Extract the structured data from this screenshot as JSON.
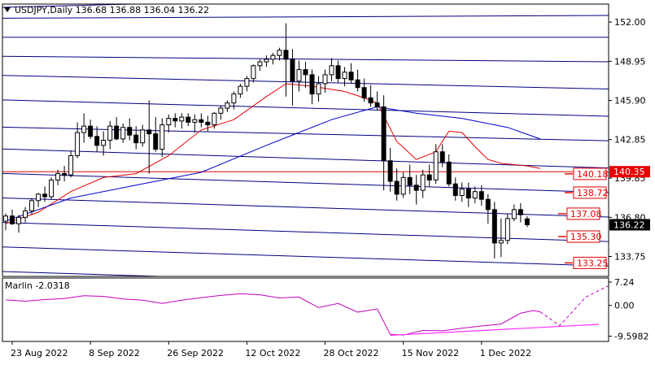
{
  "header": {
    "symbol_line": "USDJPY,Daily  136.68 136.88 136.04 136.22",
    "collapse_icon": "triangle-down-icon"
  },
  "chart_data": [
    {
      "type": "candlestick",
      "title": "USDJPY,Daily",
      "ohlc_header": {
        "open": 136.68,
        "high": 136.88,
        "low": 136.04,
        "close": 136.22
      },
      "y_ticks": [
        "152.00",
        "148.95",
        "145.90",
        "142.85",
        "139.85",
        "136.80",
        "133.75"
      ],
      "ylim": [
        132.2,
        153.4
      ],
      "x_ticks": [
        {
          "label": "23 Aug 2022",
          "index": 1
        },
        {
          "label": "8 Sep 2022",
          "index": 13
        },
        {
          "label": "26 Sep 2022",
          "index": 25
        },
        {
          "label": "12 Oct 2022",
          "index": 37
        },
        {
          "label": "28 Oct 2022",
          "index": 49
        },
        {
          "label": "15 Nov 2022",
          "index": 61
        },
        {
          "label": "1 Dec 2022",
          "index": 73
        }
      ],
      "n_slots": 93,
      "candles": [
        [
          136.5,
          137.1,
          135.8,
          136.9
        ],
        [
          136.9,
          137.4,
          136.2,
          136.3
        ],
        [
          136.3,
          137.0,
          135.6,
          136.8
        ],
        [
          136.8,
          137.6,
          136.4,
          137.3
        ],
        [
          137.3,
          138.3,
          137.0,
          138.1
        ],
        [
          138.1,
          138.7,
          137.6,
          138.6
        ],
        [
          138.6,
          139.2,
          138.0,
          138.4
        ],
        [
          138.4,
          139.9,
          138.2,
          139.7
        ],
        [
          139.7,
          140.5,
          139.3,
          140.2
        ],
        [
          140.2,
          140.8,
          139.6,
          140.1
        ],
        [
          140.1,
          142.0,
          139.9,
          141.6
        ],
        [
          141.6,
          144.2,
          141.4,
          143.4
        ],
        [
          143.4,
          144.9,
          142.6,
          143.9
        ],
        [
          143.9,
          144.4,
          142.9,
          143.1
        ],
        [
          143.1,
          143.9,
          141.9,
          142.4
        ],
        [
          142.4,
          143.5,
          141.6,
          142.8
        ],
        [
          142.8,
          144.3,
          142.1,
          143.9
        ],
        [
          143.9,
          144.6,
          142.8,
          142.9
        ],
        [
          142.9,
          144.1,
          142.6,
          143.8
        ],
        [
          143.8,
          144.5,
          142.8,
          143.2
        ],
        [
          143.2,
          143.9,
          142.1,
          142.6
        ],
        [
          142.6,
          144.0,
          142.3,
          143.6
        ],
        [
          143.6,
          145.9,
          140.2,
          143.3
        ],
        [
          143.3,
          144.6,
          141.9,
          142.1
        ],
        [
          142.1,
          144.5,
          141.5,
          144.0
        ],
        [
          144.0,
          144.8,
          143.4,
          144.5
        ],
        [
          144.5,
          144.9,
          143.8,
          144.3
        ],
        [
          144.3,
          144.9,
          143.7,
          144.6
        ],
        [
          144.6,
          144.9,
          143.9,
          144.2
        ],
        [
          144.2,
          144.8,
          143.4,
          144.4
        ],
        [
          144.4,
          144.9,
          143.8,
          144.2
        ],
        [
          144.2,
          144.7,
          143.5,
          144.0
        ],
        [
          144.0,
          145.0,
          143.7,
          144.9
        ],
        [
          144.9,
          145.5,
          144.4,
          145.3
        ],
        [
          145.3,
          145.9,
          145.0,
          145.7
        ],
        [
          145.7,
          146.6,
          145.2,
          146.4
        ],
        [
          146.4,
          147.2,
          146.1,
          147.0
        ],
        [
          147.0,
          147.8,
          146.6,
          147.6
        ],
        [
          147.6,
          148.7,
          147.3,
          148.6
        ],
        [
          148.6,
          149.1,
          148.2,
          148.9
        ],
        [
          148.9,
          149.4,
          148.5,
          149.1
        ],
        [
          149.1,
          149.6,
          148.7,
          149.4
        ],
        [
          149.4,
          150.0,
          149.0,
          149.8
        ],
        [
          149.8,
          151.9,
          146.2,
          149.1
        ],
        [
          149.1,
          149.9,
          145.5,
          147.4
        ],
        [
          147.4,
          149.0,
          146.6,
          148.3
        ],
        [
          148.3,
          148.9,
          146.9,
          147.9
        ],
        [
          147.9,
          148.3,
          145.6,
          146.4
        ],
        [
          146.4,
          147.8,
          145.8,
          147.2
        ],
        [
          147.2,
          148.3,
          146.5,
          147.9
        ],
        [
          147.9,
          149.2,
          147.4,
          148.6
        ],
        [
          148.6,
          149.0,
          147.3,
          147.6
        ],
        [
          147.6,
          148.5,
          147.0,
          148.1
        ],
        [
          148.1,
          148.8,
          147.2,
          147.5
        ],
        [
          147.5,
          148.3,
          146.6,
          146.9
        ],
        [
          146.9,
          147.6,
          145.8,
          146.1
        ],
        [
          146.1,
          147.1,
          145.4,
          145.7
        ],
        [
          145.7,
          146.6,
          145.1,
          145.4
        ],
        [
          145.4,
          146.3,
          138.9,
          141.2
        ],
        [
          141.2,
          142.2,
          138.8,
          139.6
        ],
        [
          139.6,
          140.6,
          138.1,
          138.6
        ],
        [
          138.6,
          140.3,
          138.3,
          139.9
        ],
        [
          139.9,
          140.9,
          138.6,
          139.3
        ],
        [
          139.3,
          140.1,
          137.8,
          138.9
        ],
        [
          138.9,
          140.5,
          138.3,
          140.1
        ],
        [
          140.1,
          140.9,
          139.2,
          139.7
        ],
        [
          139.7,
          142.5,
          139.4,
          141.9
        ],
        [
          141.9,
          142.5,
          140.7,
          141.1
        ],
        [
          141.1,
          141.7,
          139.2,
          139.4
        ],
        [
          139.4,
          139.9,
          138.1,
          138.5
        ],
        [
          138.5,
          139.5,
          138.0,
          139.0
        ],
        [
          139.0,
          139.5,
          137.6,
          138.3
        ],
        [
          138.3,
          139.2,
          137.9,
          138.8
        ],
        [
          138.8,
          139.3,
          137.7,
          138.2
        ],
        [
          138.2,
          138.6,
          136.3,
          137.4
        ],
        [
          137.4,
          138.0,
          133.6,
          134.8
        ],
        [
          134.8,
          136.7,
          133.7,
          135.0
        ],
        [
          135.0,
          137.1,
          134.7,
          136.7
        ],
        [
          136.7,
          137.8,
          136.5,
          137.4
        ],
        [
          137.4,
          137.9,
          136.4,
          137.0
        ],
        [
          136.68,
          136.88,
          136.04,
          136.22
        ]
      ],
      "moving_averages": [
        {
          "color": "#e60000",
          "values": [
            [
              0,
              136.3
            ],
            [
              5,
              137.2
            ],
            [
              10,
              138.8
            ],
            [
              15,
              139.9
            ],
            [
              20,
              140.2
            ],
            [
              25,
              141.6
            ],
            [
              30,
              143.6
            ],
            [
              35,
              144.4
            ],
            [
              40,
              146.2
            ],
            [
              43,
              147.2
            ],
            [
              47,
              147.0
            ],
            [
              52,
              146.6
            ],
            [
              55,
              146.1
            ],
            [
              57,
              145.7
            ],
            [
              60,
              142.7
            ],
            [
              63,
              141.3
            ],
            [
              66,
              141.9
            ],
            [
              68,
              143.5
            ],
            [
              70,
              143.4
            ],
            [
              72,
              142.3
            ],
            [
              74,
              141.3
            ],
            [
              76,
              141.0
            ],
            [
              78,
              140.9
            ],
            [
              80,
              140.8
            ],
            [
              82,
              140.6
            ]
          ]
        },
        {
          "color": "#0000cc",
          "values": [
            [
              0,
              136.5
            ],
            [
              10,
              138.3
            ],
            [
              20,
              139.3
            ],
            [
              30,
              140.3
            ],
            [
              40,
              142.4
            ],
            [
              45,
              143.4
            ],
            [
              50,
              144.4
            ],
            [
              57,
              145.4
            ],
            [
              63,
              144.9
            ],
            [
              70,
              144.5
            ],
            [
              77,
              143.8
            ],
            [
              82,
              142.9
            ]
          ]
        }
      ],
      "horizontal_lines": [
        {
          "value": 140.35,
          "color": "#e60000",
          "label": "140.35"
        }
      ],
      "price_markers": [
        {
          "value": 140.18,
          "index": 87,
          "label": "140.18"
        },
        {
          "value": 138.72,
          "index": 87,
          "label": "138.72"
        },
        {
          "value": 137.08,
          "index": 86,
          "label": "137.08"
        },
        {
          "value": 135.3,
          "index": 86,
          "label": "135.30"
        },
        {
          "value": 133.25,
          "index": 87,
          "label": "133.25"
        }
      ],
      "current_price_label": "136.22",
      "grid": false
    },
    {
      "type": "line",
      "title": "Marlin -2.0318",
      "indicator_value": -2.0318,
      "y_ticks": [
        "7.24",
        "0.00",
        "-9.5982"
      ],
      "ylim": [
        -11.2,
        8.5
      ],
      "series": [
        {
          "color": "#c000c0",
          "values": [
            [
              0,
              1.7
            ],
            [
              3,
              1.3
            ],
            [
              6,
              1.8
            ],
            [
              9,
              2.1
            ],
            [
              12,
              3.0
            ],
            [
              15,
              2.8
            ],
            [
              18,
              2.0
            ],
            [
              21,
              1.6
            ],
            [
              24,
              0.6
            ],
            [
              27,
              1.6
            ],
            [
              30,
              2.4
            ],
            [
              33,
              3.1
            ],
            [
              36,
              3.6
            ],
            [
              39,
              3.3
            ],
            [
              42,
              2.3
            ],
            [
              45,
              2.6
            ],
            [
              48,
              -0.7
            ],
            [
              51,
              0.6
            ],
            [
              54,
              -2.1
            ],
            [
              57,
              -1.1
            ],
            [
              59,
              -9.0
            ],
            [
              61,
              -9.2
            ],
            [
              64,
              -7.8
            ],
            [
              67,
              -7.9
            ],
            [
              70,
              -7.1
            ],
            [
              73,
              -6.4
            ],
            [
              76,
              -5.8
            ],
            [
              79,
              -2.4
            ],
            [
              81,
              -1.6
            ],
            [
              82,
              -2.0
            ]
          ]
        }
      ],
      "dashed_segments": [
        [
          [
            82,
            -2.0
          ],
          [
            85,
            -6.3
          ],
          [
            89,
            2.6
          ],
          [
            94,
            7.6
          ]
        ]
      ],
      "trend_lines": [
        [
          [
            59,
            -9.3
          ],
          [
            91,
            -5.9
          ]
        ]
      ]
    }
  ]
}
